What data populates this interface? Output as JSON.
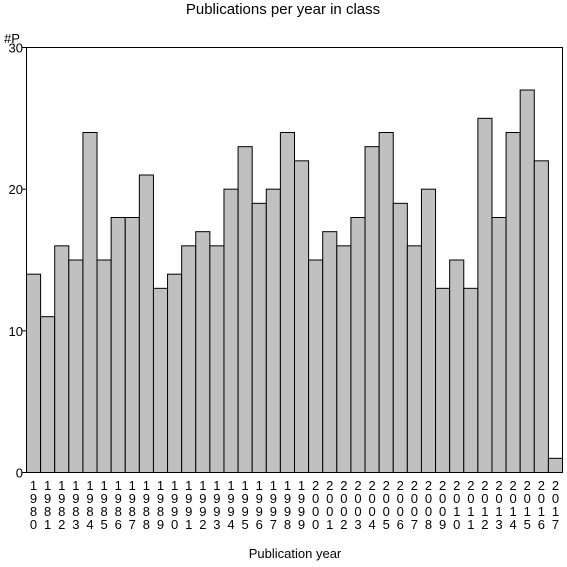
{
  "chart_data": {
    "type": "bar",
    "title": "Publications per year in class",
    "ylabel": "#P",
    "xlabel": "Publication year",
    "ylim": [
      0,
      30
    ],
    "yticks": [
      0,
      10,
      20,
      30
    ],
    "grid": false,
    "bar_color": "#c0c0c0",
    "categories": [
      "1980",
      "1981",
      "1982",
      "1983",
      "1984",
      "1985",
      "1986",
      "1987",
      "1988",
      "1989",
      "1990",
      "1991",
      "1992",
      "1993",
      "1994",
      "1995",
      "1996",
      "1997",
      "1998",
      "1999",
      "2000",
      "2001",
      "2002",
      "2003",
      "2004",
      "2005",
      "2006",
      "2007",
      "2008",
      "2009",
      "2010",
      "2011",
      "2012",
      "2013",
      "2014",
      "2015",
      "2016",
      "2017"
    ],
    "values": [
      14,
      11,
      16,
      15,
      24,
      15,
      18,
      18,
      21,
      13,
      14,
      16,
      17,
      16,
      20,
      23,
      19,
      20,
      24,
      22,
      15,
      17,
      16,
      18,
      23,
      24,
      19,
      16,
      20,
      13,
      15,
      13,
      25,
      18,
      24,
      27,
      22,
      1
    ]
  }
}
